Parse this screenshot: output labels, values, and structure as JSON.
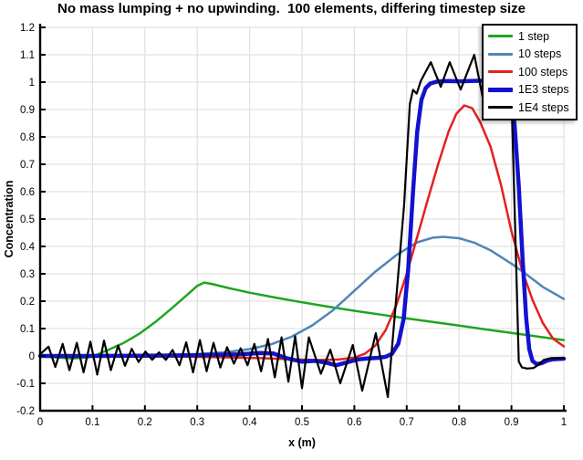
{
  "chart_data": {
    "type": "line",
    "title": "No mass lumping + no upwinding.  100 elements, differing timestep size",
    "xlabel": "x (m)",
    "ylabel": "Concentration",
    "xlim": [
      0,
      1
    ],
    "ylim": [
      -0.2,
      1.2
    ],
    "grid": true,
    "grid_color": "#e2e2e2",
    "axis_color": "#000000",
    "background": "#ffffff",
    "legend_position": "top-right",
    "x_ticks": [
      0,
      0.1,
      0.2,
      0.3,
      0.4,
      0.5,
      0.6,
      0.7,
      0.8,
      0.9,
      1
    ],
    "x_tick_labels": [
      "0",
      "0.1",
      "0.2",
      "0.3",
      "0.4",
      "0.5",
      "0.6",
      "0.7",
      "0.8",
      "0.9",
      "1"
    ],
    "y_ticks": [
      -0.2,
      -0.1,
      0,
      0.1,
      0.2,
      0.3,
      0.4,
      0.5,
      0.6,
      0.7,
      0.8,
      0.9,
      1,
      1.1,
      1.2
    ],
    "y_tick_labels": [
      "-0.2",
      "-0.1",
      "0",
      "0.1",
      "0.2",
      "0.3",
      "0.4",
      "0.5",
      "0.6",
      "0.7",
      "0.8",
      "0.9",
      "1",
      "1.1",
      "1.2"
    ],
    "series": [
      {
        "name": "1 step",
        "color": "#1ea51e",
        "width": 2.5,
        "points": [
          [
            0,
            -0.002
          ],
          [
            0.03,
            -0.005
          ],
          [
            0.06,
            -0.009
          ],
          [
            0.09,
            -0.006
          ],
          [
            0.105,
            0.002
          ],
          [
            0.13,
            0.022
          ],
          [
            0.16,
            0.048
          ],
          [
            0.19,
            0.082
          ],
          [
            0.22,
            0.124
          ],
          [
            0.25,
            0.172
          ],
          [
            0.28,
            0.222
          ],
          [
            0.3,
            0.256
          ],
          [
            0.313,
            0.268
          ],
          [
            0.33,
            0.262
          ],
          [
            0.36,
            0.248
          ],
          [
            0.4,
            0.231
          ],
          [
            0.45,
            0.213
          ],
          [
            0.5,
            0.196
          ],
          [
            0.55,
            0.18
          ],
          [
            0.6,
            0.165
          ],
          [
            0.65,
            0.151
          ],
          [
            0.7,
            0.137
          ],
          [
            0.75,
            0.124
          ],
          [
            0.8,
            0.111
          ],
          [
            0.85,
            0.097
          ],
          [
            0.9,
            0.084
          ],
          [
            0.95,
            0.071
          ],
          [
            1,
            0.058
          ]
        ]
      },
      {
        "name": "10 steps",
        "color": "#4f86b8",
        "width": 2.5,
        "points": [
          [
            0,
            0
          ],
          [
            0.06,
            0
          ],
          [
            0.12,
            0.001
          ],
          [
            0.18,
            0.002
          ],
          [
            0.24,
            0.004
          ],
          [
            0.3,
            0.007
          ],
          [
            0.35,
            0.013
          ],
          [
            0.4,
            0.025
          ],
          [
            0.44,
            0.042
          ],
          [
            0.48,
            0.07
          ],
          [
            0.52,
            0.112
          ],
          [
            0.56,
            0.168
          ],
          [
            0.6,
            0.238
          ],
          [
            0.64,
            0.308
          ],
          [
            0.68,
            0.368
          ],
          [
            0.72,
            0.415
          ],
          [
            0.75,
            0.432
          ],
          [
            0.77,
            0.435
          ],
          [
            0.8,
            0.43
          ],
          [
            0.83,
            0.413
          ],
          [
            0.86,
            0.386
          ],
          [
            0.9,
            0.337
          ],
          [
            0.93,
            0.296
          ],
          [
            0.96,
            0.252
          ],
          [
            1,
            0.208
          ]
        ]
      },
      {
        "name": "100 steps",
        "color": "#e62020",
        "width": 2.5,
        "points": [
          [
            0,
            0
          ],
          [
            0.15,
            0
          ],
          [
            0.25,
            -0.002
          ],
          [
            0.35,
            -0.005
          ],
          [
            0.42,
            -0.008
          ],
          [
            0.48,
            -0.012
          ],
          [
            0.53,
            -0.015
          ],
          [
            0.57,
            -0.013
          ],
          [
            0.6,
            -0.006
          ],
          [
            0.62,
            0.008
          ],
          [
            0.64,
            0.038
          ],
          [
            0.66,
            0.095
          ],
          [
            0.68,
            0.185
          ],
          [
            0.7,
            0.3
          ],
          [
            0.72,
            0.435
          ],
          [
            0.74,
            0.57
          ],
          [
            0.76,
            0.7
          ],
          [
            0.78,
            0.82
          ],
          [
            0.795,
            0.885
          ],
          [
            0.81,
            0.915
          ],
          [
            0.825,
            0.905
          ],
          [
            0.84,
            0.855
          ],
          [
            0.86,
            0.765
          ],
          [
            0.88,
            0.625
          ],
          [
            0.9,
            0.455
          ],
          [
            0.92,
            0.315
          ],
          [
            0.94,
            0.205
          ],
          [
            0.96,
            0.12
          ],
          [
            0.98,
            0.062
          ],
          [
            1,
            0.035
          ]
        ]
      },
      {
        "name": "1E3 steps",
        "color": "#1212cf",
        "width": 4.5,
        "points": [
          [
            0,
            0
          ],
          [
            0.1,
            0
          ],
          [
            0.2,
            0.001
          ],
          [
            0.28,
            0.002
          ],
          [
            0.34,
            0.004
          ],
          [
            0.38,
            0.006
          ],
          [
            0.42,
            0.011
          ],
          [
            0.445,
            0.009
          ],
          [
            0.47,
            -0.008
          ],
          [
            0.5,
            -0.021
          ],
          [
            0.525,
            -0.018
          ],
          [
            0.545,
            -0.024
          ],
          [
            0.565,
            -0.034
          ],
          [
            0.585,
            -0.024
          ],
          [
            0.605,
            -0.013
          ],
          [
            0.625,
            -0.009
          ],
          [
            0.645,
            -0.007
          ],
          [
            0.66,
            -0.003
          ],
          [
            0.672,
            0.008
          ],
          [
            0.684,
            0.045
          ],
          [
            0.694,
            0.135
          ],
          [
            0.703,
            0.32
          ],
          [
            0.712,
            0.6
          ],
          [
            0.72,
            0.82
          ],
          [
            0.728,
            0.935
          ],
          [
            0.736,
            0.978
          ],
          [
            0.745,
            0.995
          ],
          [
            0.76,
            1.003
          ],
          [
            0.78,
            1.004
          ],
          [
            0.8,
            1.003
          ],
          [
            0.82,
            1.004
          ],
          [
            0.84,
            1.005
          ],
          [
            0.86,
            1.006
          ],
          [
            0.875,
            1.005
          ],
          [
            0.888,
            0.995
          ],
          [
            0.898,
            0.955
          ],
          [
            0.906,
            0.845
          ],
          [
            0.914,
            0.62
          ],
          [
            0.921,
            0.36
          ],
          [
            0.928,
            0.14
          ],
          [
            0.934,
            0.025
          ],
          [
            0.94,
            -0.018
          ],
          [
            0.948,
            -0.03
          ],
          [
            0.958,
            -0.026
          ],
          [
            0.968,
            -0.017
          ],
          [
            0.98,
            -0.012
          ],
          [
            1,
            -0.01
          ]
        ]
      },
      {
        "name": "1E4 steps",
        "color": "#000000",
        "width": 2.2,
        "points": [
          [
            0,
            0.006
          ],
          [
            0.016,
            0.034
          ],
          [
            0.029,
            -0.04
          ],
          [
            0.043,
            0.044
          ],
          [
            0.056,
            -0.052
          ],
          [
            0.07,
            0.048
          ],
          [
            0.083,
            -0.06
          ],
          [
            0.096,
            0.052
          ],
          [
            0.109,
            -0.068
          ],
          [
            0.122,
            0.056
          ],
          [
            0.135,
            -0.052
          ],
          [
            0.149,
            0.038
          ],
          [
            0.162,
            -0.036
          ],
          [
            0.175,
            0.026
          ],
          [
            0.188,
            -0.022
          ],
          [
            0.201,
            0.016
          ],
          [
            0.214,
            -0.014
          ],
          [
            0.227,
            0.013
          ],
          [
            0.24,
            -0.014
          ],
          [
            0.253,
            0.022
          ],
          [
            0.266,
            -0.034
          ],
          [
            0.279,
            0.05
          ],
          [
            0.292,
            -0.06
          ],
          [
            0.305,
            0.058
          ],
          [
            0.318,
            -0.056
          ],
          [
            0.331,
            0.048
          ],
          [
            0.344,
            -0.042
          ],
          [
            0.357,
            0.032
          ],
          [
            0.37,
            -0.028
          ],
          [
            0.383,
            0.028
          ],
          [
            0.396,
            -0.034
          ],
          [
            0.409,
            0.044
          ],
          [
            0.422,
            -0.056
          ],
          [
            0.435,
            0.062
          ],
          [
            0.448,
            -0.078
          ],
          [
            0.461,
            0.068
          ],
          [
            0.474,
            -0.094
          ],
          [
            0.487,
            0.072
          ],
          [
            0.5,
            -0.118
          ],
          [
            0.513,
            0.068
          ],
          [
            0.536,
            -0.065
          ],
          [
            0.554,
            0.023
          ],
          [
            0.573,
            -0.1
          ],
          [
            0.597,
            0.04
          ],
          [
            0.615,
            -0.127
          ],
          [
            0.641,
            0.083
          ],
          [
            0.664,
            -0.15
          ],
          [
            0.695,
            0.55
          ],
          [
            0.706,
            0.92
          ],
          [
            0.712,
            0.972
          ],
          [
            0.719,
            0.958
          ],
          [
            0.727,
            1.005
          ],
          [
            0.746,
            1.073
          ],
          [
            0.765,
            0.983
          ],
          [
            0.782,
            1.073
          ],
          [
            0.803,
            0.973
          ],
          [
            0.829,
            1.1
          ],
          [
            0.848,
            0.915
          ],
          [
            0.868,
            1.055
          ],
          [
            0.884,
            0.96
          ],
          [
            0.898,
            1.085
          ],
          [
            0.908,
            0.4
          ],
          [
            0.914,
            -0.02
          ],
          [
            0.92,
            -0.042
          ],
          [
            0.93,
            -0.046
          ],
          [
            0.942,
            -0.044
          ],
          [
            0.952,
            -0.032
          ],
          [
            0.962,
            -0.014
          ],
          [
            0.975,
            -0.008
          ],
          [
            1,
            -0.008
          ]
        ]
      }
    ]
  }
}
